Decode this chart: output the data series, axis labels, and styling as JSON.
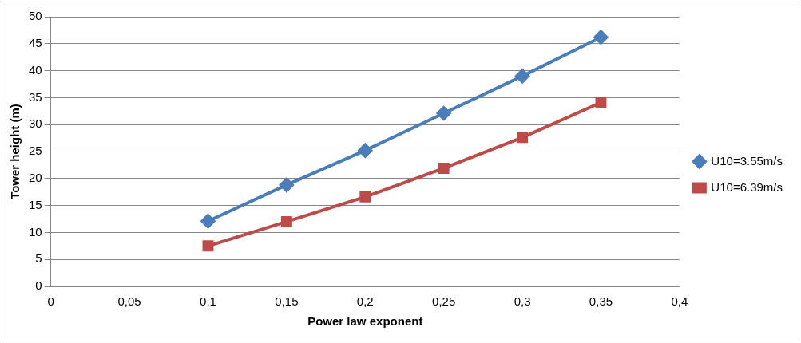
{
  "chart_data": {
    "type": "line",
    "xlabel": "Power law exponent",
    "ylabel": "Tower height (m)",
    "series": [
      {
        "name": "U10=3.55m/s",
        "color": "#4a7ebb",
        "x": [
          0.1,
          0.15,
          0.2,
          0.25,
          0.3,
          0.35
        ],
        "values": [
          12.1,
          18.8,
          25.2,
          32.1,
          39.0,
          46.2
        ],
        "marker": "diamond"
      },
      {
        "name": "U10=6.39m/s",
        "color": "#be4b48",
        "x": [
          0.1,
          0.15,
          0.2,
          0.25,
          0.3,
          0.35
        ],
        "values": [
          7.5,
          12.0,
          16.6,
          21.9,
          27.6,
          34.1
        ],
        "marker": "square"
      }
    ],
    "xlim": [
      0,
      0.4
    ],
    "xticks": [
      0,
      {
        "value": 0.05,
        "label": "0,05"
      },
      {
        "value": 0.1,
        "label": "0,1"
      },
      {
        "value": 0.15,
        "label": "0,15"
      },
      {
        "value": 0.2,
        "label": "0,2"
      },
      {
        "value": 0.25,
        "label": "0,25"
      },
      {
        "value": 0.3,
        "label": "0,3"
      },
      {
        "value": 0.35,
        "label": "0,35"
      },
      {
        "value": 0.4,
        "label": "0,4"
      }
    ],
    "ylim": [
      0,
      50
    ],
    "yticks": [
      0,
      5,
      10,
      15,
      20,
      25,
      30,
      35,
      40,
      45,
      50
    ],
    "grid": "y",
    "legend": "right",
    "line_style": "solid"
  }
}
